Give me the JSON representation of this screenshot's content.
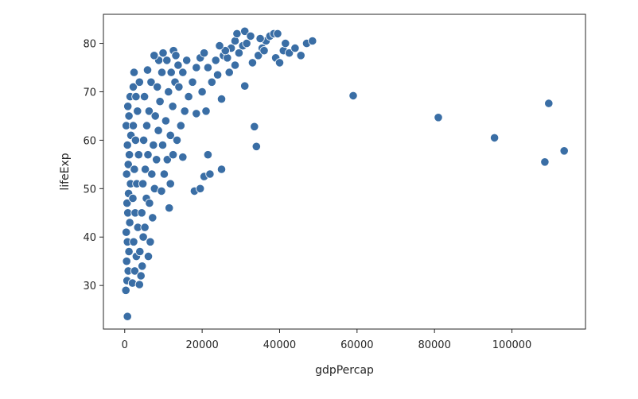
{
  "chart_data": {
    "type": "scatter",
    "title": "",
    "xlabel": "gdpPercap",
    "ylabel": "lifeExp",
    "xlim": [
      -5500,
      119000
    ],
    "ylim": [
      21,
      86
    ],
    "xticks": [
      0,
      20000,
      40000,
      60000,
      80000,
      100000
    ],
    "yticks": [
      30,
      40,
      50,
      60,
      70,
      80
    ],
    "grid": false,
    "legend": "none",
    "marker_color": "#3a6ea5",
    "marker_edge_color": "#ffffff",
    "series": [
      {
        "points": [
          [
            700,
            23.6
          ],
          [
            300,
            29
          ],
          [
            600,
            31
          ],
          [
            900,
            33
          ],
          [
            500,
            35
          ],
          [
            1100,
            37
          ],
          [
            700,
            39
          ],
          [
            400,
            41
          ],
          [
            1300,
            43
          ],
          [
            800,
            45
          ],
          [
            600,
            47
          ],
          [
            1000,
            49
          ],
          [
            1500,
            51
          ],
          [
            500,
            53
          ],
          [
            900,
            55
          ],
          [
            1200,
            57
          ],
          [
            700,
            59
          ],
          [
            1600,
            61
          ],
          [
            400,
            63
          ],
          [
            1100,
            65
          ],
          [
            800,
            67
          ],
          [
            1400,
            69
          ],
          [
            2200,
            71
          ],
          [
            2000,
            30.5
          ],
          [
            2600,
            33
          ],
          [
            3000,
            36
          ],
          [
            2300,
            39
          ],
          [
            3400,
            42
          ],
          [
            2700,
            45
          ],
          [
            2100,
            48
          ],
          [
            3100,
            51
          ],
          [
            2500,
            54
          ],
          [
            3600,
            57
          ],
          [
            2800,
            60
          ],
          [
            2200,
            63
          ],
          [
            3300,
            66
          ],
          [
            2900,
            69
          ],
          [
            3800,
            72
          ],
          [
            2400,
            74
          ],
          [
            3800,
            30.2
          ],
          [
            4200,
            32
          ],
          [
            4500,
            34
          ],
          [
            3900,
            37
          ],
          [
            4800,
            40
          ],
          [
            5200,
            42
          ],
          [
            4400,
            45
          ],
          [
            5600,
            48
          ],
          [
            4700,
            51
          ],
          [
            5300,
            54
          ],
          [
            6000,
            57
          ],
          [
            4900,
            60
          ],
          [
            5700,
            63
          ],
          [
            6300,
            66
          ],
          [
            5100,
            69
          ],
          [
            6800,
            72
          ],
          [
            5900,
            74.5
          ],
          [
            6100,
            36
          ],
          [
            6600,
            39
          ],
          [
            7200,
            44
          ],
          [
            6400,
            47
          ],
          [
            7700,
            50
          ],
          [
            7000,
            53
          ],
          [
            8200,
            56
          ],
          [
            7400,
            59
          ],
          [
            8700,
            62
          ],
          [
            7900,
            65
          ],
          [
            9100,
            68
          ],
          [
            8400,
            71
          ],
          [
            9600,
            74
          ],
          [
            8800,
            76.5
          ],
          [
            7600,
            77.5
          ],
          [
            9500,
            49.5
          ],
          [
            10200,
            53
          ],
          [
            11000,
            56
          ],
          [
            9800,
            59
          ],
          [
            11800,
            61
          ],
          [
            10600,
            64
          ],
          [
            12400,
            67
          ],
          [
            11300,
            70
          ],
          [
            13000,
            72
          ],
          [
            12000,
            74
          ],
          [
            13800,
            75.5
          ],
          [
            10900,
            76.5
          ],
          [
            9900,
            78
          ],
          [
            12600,
            78.5
          ],
          [
            11500,
            46
          ],
          [
            11800,
            51
          ],
          [
            12500,
            57
          ],
          [
            13500,
            60
          ],
          [
            14500,
            63
          ],
          [
            15500,
            66
          ],
          [
            16500,
            69
          ],
          [
            14000,
            71
          ],
          [
            17500,
            72
          ],
          [
            15000,
            74
          ],
          [
            18500,
            75
          ],
          [
            16000,
            76.5
          ],
          [
            19500,
            77
          ],
          [
            13200,
            77.5
          ],
          [
            15000,
            56.5
          ],
          [
            18000,
            49.5
          ],
          [
            19500,
            50
          ],
          [
            20500,
            52.5
          ],
          [
            21500,
            57
          ],
          [
            22000,
            53
          ],
          [
            25000,
            54
          ],
          [
            18500,
            65.5
          ],
          [
            21000,
            66
          ],
          [
            20000,
            70
          ],
          [
            22500,
            72
          ],
          [
            24000,
            73.5
          ],
          [
            21500,
            75
          ],
          [
            23500,
            76.5
          ],
          [
            25500,
            77.5
          ],
          [
            20500,
            78
          ],
          [
            25000,
            68.5
          ],
          [
            27000,
            74
          ],
          [
            28500,
            75.5
          ],
          [
            26500,
            77
          ],
          [
            29500,
            78
          ],
          [
            27500,
            79
          ],
          [
            30500,
            79.5
          ],
          [
            28500,
            80.5
          ],
          [
            31500,
            80
          ],
          [
            26000,
            78.5
          ],
          [
            29000,
            82
          ],
          [
            31000,
            82.5
          ],
          [
            32500,
            81.5
          ],
          [
            24500,
            79.5
          ],
          [
            31000,
            71.2
          ],
          [
            33500,
            62.8
          ],
          [
            34000,
            58.7
          ],
          [
            33000,
            76
          ],
          [
            34500,
            77.5
          ],
          [
            35500,
            79
          ],
          [
            36500,
            80.5
          ],
          [
            37500,
            81.5
          ],
          [
            35000,
            81
          ],
          [
            38500,
            82
          ],
          [
            39500,
            82
          ],
          [
            36000,
            78.5
          ],
          [
            39000,
            77
          ],
          [
            40000,
            76
          ],
          [
            41000,
            78.5
          ],
          [
            42500,
            78
          ],
          [
            44000,
            79
          ],
          [
            45500,
            77.5
          ],
          [
            47000,
            80
          ],
          [
            48500,
            80.5
          ],
          [
            41500,
            80
          ],
          [
            59000,
            69.2
          ],
          [
            81000,
            64.7
          ],
          [
            95500,
            60.5
          ],
          [
            108500,
            55.5
          ],
          [
            109500,
            67.6
          ],
          [
            113500,
            57.8
          ]
        ]
      }
    ]
  }
}
